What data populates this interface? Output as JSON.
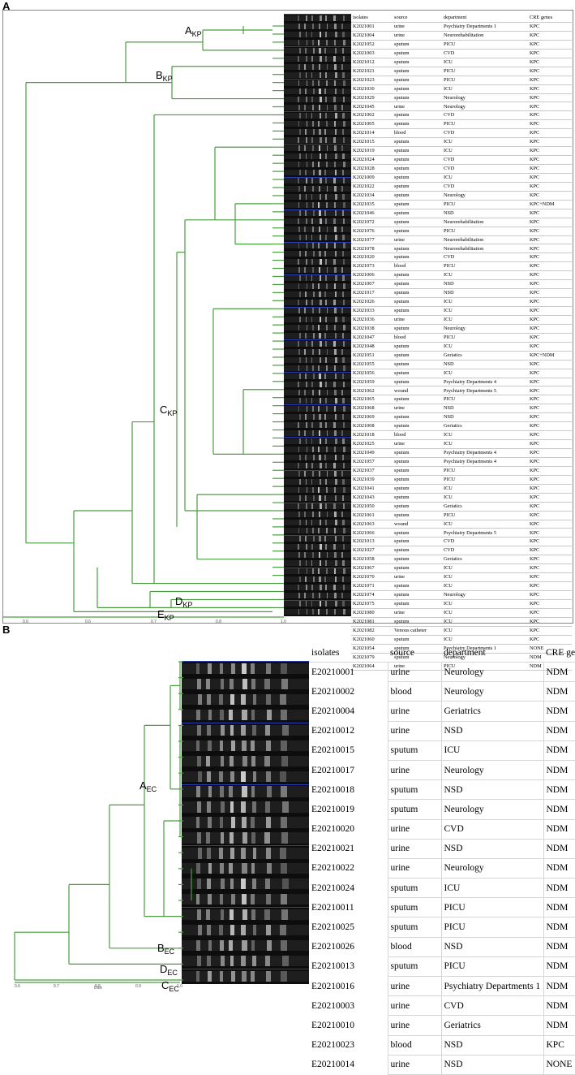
{
  "panelA": {
    "letter": "A",
    "headers": [
      "isolates",
      "source",
      "department",
      "CRE genes"
    ],
    "clusters": [
      {
        "name": "A",
        "sub": "KP"
      },
      {
        "name": "B",
        "sub": "KP"
      },
      {
        "name": "C",
        "sub": "KP"
      },
      {
        "name": "D",
        "sub": "KP"
      },
      {
        "name": "E",
        "sub": "KP"
      }
    ],
    "scale_ticks": [
      "0.6",
      "0.6",
      "0.7",
      "0.8",
      "1.0"
    ],
    "rows": [
      [
        "K2021001",
        "urine",
        "Psychiatry Departments 1",
        "KPC"
      ],
      [
        "K2021004",
        "urine",
        "Neurorehabilitation",
        "KPC"
      ],
      [
        "K2021052",
        "sputum",
        "PICU",
        "KPC"
      ],
      [
        "K2021003",
        "sputum",
        "CVD",
        "KPC"
      ],
      [
        "K2021012",
        "sputum",
        "ICU",
        "KPC"
      ],
      [
        "K2021021",
        "sputum",
        "PICU",
        "KPC"
      ],
      [
        "K2021023",
        "sputum",
        "PICU",
        "KPC"
      ],
      [
        "K2021030",
        "sputum",
        "ICU",
        "KPC"
      ],
      [
        "K2021029",
        "sputum",
        "Neurology",
        "KPC"
      ],
      [
        "K2021045",
        "urine",
        "Neurology",
        "KPC"
      ],
      [
        "K2021002",
        "sputum",
        "CVD",
        "KPC"
      ],
      [
        "K2021005",
        "sputum",
        "PICU",
        "KPC"
      ],
      [
        "K2021014",
        "blood",
        "CVD",
        "KPC"
      ],
      [
        "K2021015",
        "sputum",
        "ICU",
        "KPC"
      ],
      [
        "K2021019",
        "sputum",
        "ICU",
        "KPC"
      ],
      [
        "K2021024",
        "sputum",
        "CVD",
        "KPC"
      ],
      [
        "K2021028",
        "sputum",
        "CVD",
        "KPC"
      ],
      [
        "K2021009",
        "sputum",
        "ICU",
        "KPC"
      ],
      [
        "K2021022",
        "sputum",
        "CVD",
        "KPC"
      ],
      [
        "K2021034",
        "sputum",
        "Neurology",
        "KPC"
      ],
      [
        "K2021035",
        "sputum",
        "PICU",
        "KPC+NDM"
      ],
      [
        "K2021046",
        "sputum",
        "NSD",
        "KPC"
      ],
      [
        "K2021072",
        "sputum",
        "Neurorehabilitation",
        "KPC"
      ],
      [
        "K2021076",
        "sputum",
        "PICU",
        "KPC"
      ],
      [
        "K2021077",
        "urine",
        "Neurorehabilitation",
        "KPC"
      ],
      [
        "K2021078",
        "sputum",
        "Neurorehabilitation",
        "KPC"
      ],
      [
        "K2021020",
        "sputum",
        "CVD",
        "KPC"
      ],
      [
        "K2021073",
        "blood",
        "PICU",
        "KPC"
      ],
      [
        "K2021006",
        "sputum",
        "ICU",
        "KPC"
      ],
      [
        "K2021007",
        "sputum",
        "NSD",
        "KPC"
      ],
      [
        "K2021017",
        "sputum",
        "NSD",
        "KPC"
      ],
      [
        "K2021026",
        "sputum",
        "ICU",
        "KPC"
      ],
      [
        "K2021033",
        "sputum",
        "ICU",
        "KPC"
      ],
      [
        "K2021036",
        "urine",
        "ICU",
        "KPC"
      ],
      [
        "K2021038",
        "sputum",
        "Neurology",
        "KPC"
      ],
      [
        "K2021047",
        "blood",
        "PICU",
        "KPC"
      ],
      [
        "K2021048",
        "sputum",
        "ICU",
        "KPC"
      ],
      [
        "K2021051",
        "sputum",
        "Geriatics",
        "KPC+NDM"
      ],
      [
        "K2021055",
        "sputum",
        "NSD",
        "KPC"
      ],
      [
        "K2021056",
        "sputum",
        "ICU",
        "KPC"
      ],
      [
        "K2021059",
        "sputum",
        "Psychiatry Departments 4",
        "KPC"
      ],
      [
        "K2021062",
        "wound",
        "Psychiatry Departments 5",
        "KPC"
      ],
      [
        "K2021065",
        "sputum",
        "PICU",
        "KPC"
      ],
      [
        "K2021068",
        "urine",
        "NSD",
        "KPC"
      ],
      [
        "K2021069",
        "sputum",
        "NSD",
        "KPC"
      ],
      [
        "K2021008",
        "sputum",
        "Geriatics",
        "KPC"
      ],
      [
        "K2021018",
        "blood",
        "ICU",
        "KPC"
      ],
      [
        "K2021025",
        "urine",
        "ICU",
        "KPC"
      ],
      [
        "K2021049",
        "sputum",
        "Psychiatry Departments 4",
        "KPC"
      ],
      [
        "K2021057",
        "sputum",
        "Psychiatry Departments 4",
        "KPC"
      ],
      [
        "K2021037",
        "sputum",
        "PICU",
        "KPC"
      ],
      [
        "K2021039",
        "sputum",
        "PICU",
        "KPC"
      ],
      [
        "K2021041",
        "sputum",
        "ICU",
        "KPC"
      ],
      [
        "K2021043",
        "sputum",
        "ICU",
        "KPC"
      ],
      [
        "K2021050",
        "sputum",
        "Geriatics",
        "KPC"
      ],
      [
        "K2021061",
        "sputum",
        "PICU",
        "KPC"
      ],
      [
        "K2021063",
        "wound",
        "ICU",
        "KPC"
      ],
      [
        "K2021066",
        "sputum",
        "Psychiatry Departments 5",
        "KPC"
      ],
      [
        "K2021013",
        "sputum",
        "CVD",
        "KPC"
      ],
      [
        "K2021027",
        "sputum",
        "CVD",
        "KPC"
      ],
      [
        "K2021058",
        "sputum",
        "Geriatics",
        "KPC"
      ],
      [
        "K2021067",
        "sputum",
        "ICU",
        "KPC"
      ],
      [
        "K2021070",
        "urine",
        "ICU",
        "KPC"
      ],
      [
        "K2021071",
        "sputum",
        "ICU",
        "KPC"
      ],
      [
        "K2021074",
        "sputum",
        "Neurology",
        "KPC"
      ],
      [
        "K2021075",
        "sputum",
        "ICU",
        "KPC"
      ],
      [
        "K2021080",
        "urine",
        "ICU",
        "KPC"
      ],
      [
        "K2021081",
        "sputum",
        "ICU",
        "KPC"
      ],
      [
        "K2021082",
        "Venous catheter",
        "ICU",
        "KPC"
      ],
      [
        "K2021060",
        "sputum",
        "ICU",
        "KPC"
      ],
      [
        "K2021054",
        "sputum",
        "Psychiatry Departments 1",
        "NONE"
      ],
      [
        "K2021079",
        "sputum",
        "Neurology",
        "NDM"
      ],
      [
        "K2021064",
        "urine",
        "PICU",
        "NDM"
      ]
    ]
  },
  "panelB": {
    "letter": "B",
    "headers": [
      "isolates",
      "source",
      "department",
      "CRE genes"
    ],
    "clusters": [
      {
        "name": "A",
        "sub": "EC"
      },
      {
        "name": "B",
        "sub": "EC"
      },
      {
        "name": "D",
        "sub": "EC"
      },
      {
        "name": "C",
        "sub": "EC"
      }
    ],
    "scale_ticks": [
      "0.6",
      "0.7",
      "0.8",
      "0.9",
      "1.0"
    ],
    "scale_caption": "Dice",
    "rows": [
      [
        "E20210001",
        "urine",
        "Neurology",
        "NDM"
      ],
      [
        "E20210002",
        "blood",
        "Neurology",
        "NDM"
      ],
      [
        "E20210004",
        "urine",
        "Geriatrics",
        "NDM"
      ],
      [
        "E20210012",
        "urine",
        "NSD",
        "NDM"
      ],
      [
        "E20210015",
        "sputum",
        "ICU",
        "NDM"
      ],
      [
        "E20210017",
        "urine",
        "Neurology",
        "NDM"
      ],
      [
        "E20210018",
        "sputum",
        "NSD",
        "NDM"
      ],
      [
        "E20210019",
        "sputum",
        "Neurology",
        "NDM"
      ],
      [
        "E20210020",
        "urine",
        "CVD",
        "NDM"
      ],
      [
        "E20210021",
        "urine",
        "NSD",
        "NDM"
      ],
      [
        "E20210022",
        "urine",
        "Neurology",
        "NDM"
      ],
      [
        "E20210024",
        "sputum",
        "ICU",
        "NDM"
      ],
      [
        "E20210011",
        "sputum",
        "PICU",
        "NDM"
      ],
      [
        "E20210025",
        "sputum",
        "PICU",
        "NDM"
      ],
      [
        "E20210026",
        "blood",
        "NSD",
        "NDM"
      ],
      [
        "E20210013",
        "sputum",
        "PICU",
        "NDM"
      ],
      [
        "E20210016",
        "urine",
        "Psychiatry Departments 1",
        "NDM"
      ],
      [
        "E20210003",
        "urine",
        "CVD",
        "NDM"
      ],
      [
        "E20210010",
        "urine",
        "Geriatrics",
        "NDM"
      ],
      [
        "E20210023",
        "blood",
        "NSD",
        "KPC"
      ],
      [
        "E20210014",
        "urine",
        "NSD",
        "NONE"
      ]
    ]
  },
  "colors": {
    "tree": "#4a9e3f",
    "gel_bg": "#0d0d0d",
    "gel_band": "#dcdcdc",
    "lane_line": "#2b3fb0"
  }
}
